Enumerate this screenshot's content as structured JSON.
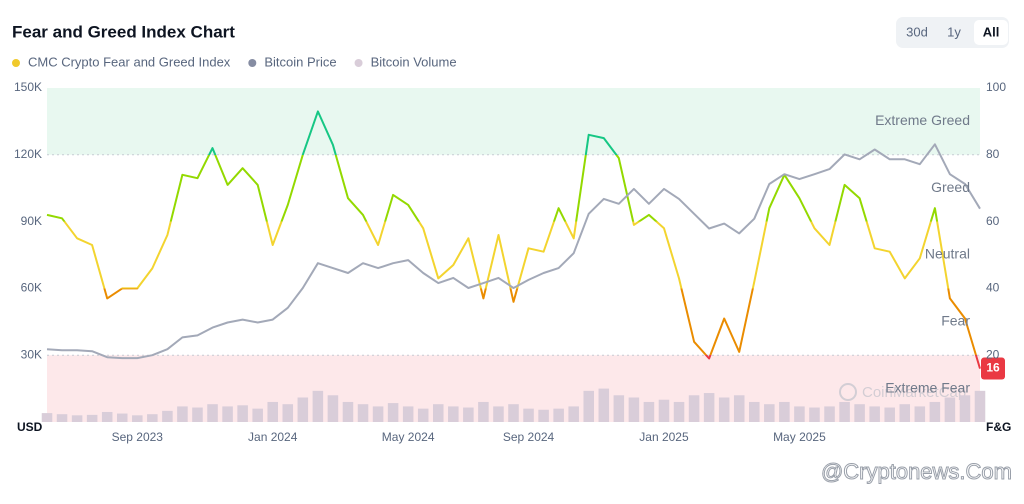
{
  "chart_data": {
    "type": "line",
    "title": "Fear and Greed Index Chart",
    "buttons": [
      {
        "label": "30d",
        "active": false
      },
      {
        "label": "1y",
        "active": false
      },
      {
        "label": "All",
        "active": true
      }
    ],
    "categories": [
      null,
      null,
      null,
      null,
      null,
      null,
      "Sep 2023",
      null,
      null,
      null,
      null,
      null,
      null,
      null,
      null,
      "Jan 2024",
      null,
      null,
      null,
      null,
      null,
      null,
      null,
      null,
      "May 2024",
      null,
      null,
      null,
      null,
      null,
      null,
      null,
      "Sep 2024",
      null,
      null,
      null,
      null,
      null,
      null,
      null,
      null,
      "Jan 2025",
      null,
      null,
      null,
      null,
      null,
      null,
      null,
      null,
      "May 2025",
      null,
      null,
      null,
      null,
      null,
      null,
      null,
      null,
      null,
      null,
      null,
      null
    ],
    "series": [
      {
        "name": "CMC Crypto Fear and Greed Index",
        "color": "#f0c92b",
        "axis": "y2",
        "type": "line",
        "values": [
          62,
          61,
          55,
          53,
          37,
          40,
          40,
          46,
          56,
          74,
          73,
          82,
          71,
          76,
          71,
          53,
          65,
          80,
          93,
          83,
          67,
          62,
          53,
          68,
          65,
          58,
          43,
          47,
          55,
          37,
          56,
          36,
          52,
          51,
          64,
          55,
          86,
          85,
          79,
          59,
          62,
          58,
          43,
          24,
          19,
          31,
          21,
          42,
          64,
          74,
          67,
          58,
          53,
          71,
          67,
          52,
          51,
          43,
          49,
          64,
          37,
          31,
          16
        ]
      },
      {
        "name": "Bitcoin Price",
        "color": "#a3a9b8",
        "axis": "y",
        "type": "line",
        "values": [
          32700,
          32200,
          32200,
          31800,
          29100,
          28700,
          28700,
          30000,
          32700,
          38000,
          38900,
          42400,
          44700,
          46000,
          44700,
          46000,
          51300,
          60200,
          71300,
          69100,
          66900,
          71300,
          69100,
          71300,
          72700,
          66900,
          62400,
          64700,
          60200,
          62400,
          64700,
          60200,
          63800,
          66900,
          69100,
          75800,
          93500,
          100200,
          98000,
          104700,
          98000,
          104700,
          100200,
          93500,
          86900,
          89100,
          84700,
          91300,
          106900,
          111300,
          109100,
          111300,
          113600,
          120200,
          118000,
          122400,
          118000,
          118000,
          115800,
          124700,
          111300,
          106900,
          95800
        ]
      },
      {
        "name": "Bitcoin Volume",
        "color": "#d9cdd9",
        "axis": "y",
        "type": "bar",
        "values": [
          4000,
          3500,
          3000,
          3200,
          4500,
          3800,
          3000,
          3500,
          5000,
          7000,
          6500,
          8000,
          7000,
          7500,
          6000,
          9000,
          8000,
          11000,
          14000,
          12000,
          9000,
          8000,
          7000,
          8500,
          7000,
          6000,
          8000,
          7000,
          6500,
          9000,
          7000,
          8000,
          6000,
          5500,
          6000,
          7000,
          14000,
          15000,
          12000,
          11000,
          9000,
          10000,
          9000,
          12000,
          13000,
          11000,
          12000,
          9000,
          8000,
          9000,
          7000,
          6500,
          7000,
          9000,
          8000,
          7000,
          6500,
          8000,
          7000,
          9000,
          11000,
          12000,
          14000
        ]
      }
    ],
    "ylim": [
      0,
      150000
    ],
    "yticks": [
      {
        "value": 30000,
        "label": "30K"
      },
      {
        "value": 60000,
        "label": "60K"
      },
      {
        "value": 90000,
        "label": "90K"
      },
      {
        "value": 120000,
        "label": "120K"
      },
      {
        "value": 150000,
        "label": "150K"
      }
    ],
    "ylabel": "USD",
    "y2lim": [
      0,
      100
    ],
    "y2ticks": [
      20,
      40,
      60,
      80,
      100
    ],
    "y2label": "F&G",
    "zones": [
      {
        "label": "Extreme Fear",
        "range": [
          0,
          20
        ],
        "color": "#ea3943",
        "background": "#fde8ea"
      },
      {
        "label": "Fear",
        "range": [
          20,
          40
        ],
        "color": "#ea8c00"
      },
      {
        "label": "Neutral",
        "range": [
          40,
          60
        ],
        "color": "#f3d42f"
      },
      {
        "label": "Greed",
        "range": [
          60,
          80
        ],
        "color": "#93d900"
      },
      {
        "label": "Extreme Greed",
        "range": [
          80,
          100
        ],
        "color": "#16c784",
        "background": "#e8f8f0"
      }
    ],
    "watermarks": [
      "CoinMarketCap",
      "@Cryptonews.Com"
    ]
  }
}
